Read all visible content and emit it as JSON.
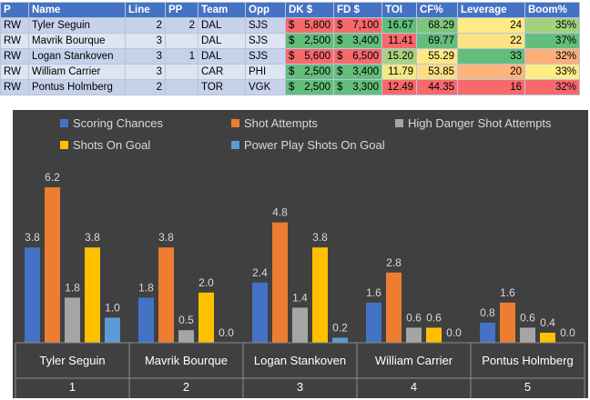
{
  "table": {
    "columns": [
      "P",
      "Name",
      "Line",
      "PP",
      "Team",
      "Opp",
      "DK $",
      "FD $",
      "TOI",
      "CF%",
      "Leverage",
      "Boom%"
    ],
    "rows": [
      {
        "P": "RW",
        "Name": "Tyler Seguin",
        "Line": "2",
        "PP": "2",
        "Team": "DAL",
        "Opp": "SJS",
        "DK": "5,800",
        "FD": "7,100",
        "TOI": "16.67",
        "CF": "68.29",
        "Leverage": "24",
        "Boom": "35%"
      },
      {
        "P": "RW",
        "Name": "Mavrik Bourque",
        "Line": "3",
        "PP": "",
        "Team": "DAL",
        "Opp": "SJS",
        "DK": "2,500",
        "FD": "3,400",
        "TOI": "11.41",
        "CF": "69.77",
        "Leverage": "22",
        "Boom": "37%"
      },
      {
        "P": "RW",
        "Name": "Logan Stankoven",
        "Line": "3",
        "PP": "1",
        "Team": "DAL",
        "Opp": "SJS",
        "DK": "5,600",
        "FD": "6,500",
        "TOI": "15.20",
        "CF": "55.29",
        "Leverage": "33",
        "Boom": "32%"
      },
      {
        "P": "RW",
        "Name": "William Carrier",
        "Line": "3",
        "PP": "",
        "Team": "CAR",
        "Opp": "PHI",
        "DK": "2,500",
        "FD": "3,400",
        "TOI": "11.79",
        "CF": "53.85",
        "Leverage": "20",
        "Boom": "33%"
      },
      {
        "P": "RW",
        "Name": "Pontus Holmberg",
        "Line": "2",
        "PP": "",
        "Team": "TOR",
        "Opp": "VGK",
        "DK": "2,500",
        "FD": "3,300",
        "TOI": "12.49",
        "CF": "44.35",
        "Leverage": "16",
        "Boom": "32%"
      }
    ],
    "colors": {
      "DK": [
        "#f8696b",
        "#63be7b",
        "#f8696b",
        "#63be7b",
        "#63be7b"
      ],
      "FD": [
        "#f8696b",
        "#63be7b",
        "#f8696b",
        "#63be7b",
        "#63be7b"
      ],
      "TOI": [
        "#63be7b",
        "#f8696b",
        "#a9d27f",
        "#f2e984",
        "#f8696b"
      ],
      "CF": [
        "#7fc67c",
        "#63be7b",
        "#ffe884",
        "#ffdd82",
        "#f8696b"
      ],
      "Leverage": [
        "#ffeb84",
        "#fde283",
        "#63be7b",
        "#fcb47a",
        "#f8696b"
      ],
      "Boom": [
        "#a2d07f",
        "#63be7b",
        "#fcae78",
        "#ffeb84",
        "#f8696b"
      ]
    }
  },
  "chart_data": {
    "type": "bar",
    "title": "",
    "categories": [
      "Tyler Seguin",
      "Mavrik Bourque",
      "Logan Stankoven",
      "William Carrier",
      "Pontus Holmberg"
    ],
    "category_index": [
      "1",
      "2",
      "3",
      "4",
      "5"
    ],
    "series": [
      {
        "name": "Scoring Chances",
        "color": "#4472c4",
        "values": [
          3.8,
          1.8,
          2.4,
          1.6,
          0.8
        ]
      },
      {
        "name": "Shot Attempts",
        "color": "#ed7d31",
        "values": [
          6.2,
          3.8,
          4.8,
          2.8,
          1.6
        ]
      },
      {
        "name": "High Danger Shot Attempts",
        "color": "#a5a5a5",
        "values": [
          1.8,
          0.5,
          1.4,
          0.6,
          0.6
        ]
      },
      {
        "name": "Shots On Goal",
        "color": "#ffc000",
        "values": [
          3.8,
          2.0,
          3.8,
          0.6,
          0.4
        ]
      },
      {
        "name": "Power Play Shots On Goal",
        "color": "#5b9bd5",
        "values": [
          1.0,
          0.0,
          0.2,
          0.0,
          0.0
        ]
      }
    ],
    "ylim": [
      0,
      7
    ],
    "grid": false,
    "legend": "top",
    "background": "#404040"
  }
}
